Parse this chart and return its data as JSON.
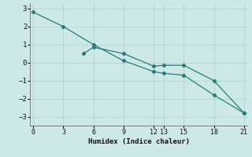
{
  "xlabel": "Humidex (Indice chaleur)",
  "ylabel": "",
  "background_color": "#cce9e8",
  "grid_color": "#b8d8d6",
  "line_color": "#2a7a7a",
  "line1_x": [
    0,
    3,
    6,
    9,
    12,
    13,
    15,
    18,
    21
  ],
  "line1_y": [
    2.8,
    2.0,
    1.0,
    0.1,
    -0.5,
    -0.6,
    -0.7,
    -1.8,
    -2.8
  ],
  "line2_x": [
    5,
    6,
    9,
    12,
    13,
    15,
    18,
    21
  ],
  "line2_y": [
    0.5,
    0.85,
    0.5,
    -0.2,
    -0.15,
    -0.15,
    -1.0,
    -2.8
  ],
  "xticks": [
    0,
    3,
    6,
    9,
    12,
    13,
    15,
    18,
    21
  ],
  "yticks": [
    -3,
    -2,
    -1,
    0,
    1,
    2,
    3
  ],
  "xlim": [
    -0.3,
    21.3
  ],
  "ylim": [
    -3.5,
    3.3
  ]
}
